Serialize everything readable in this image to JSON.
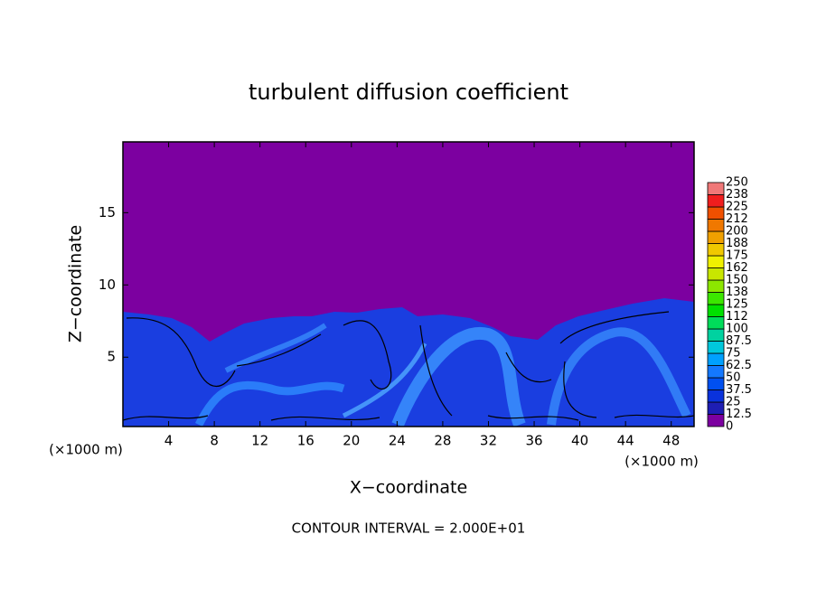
{
  "chart_data": {
    "type": "contour",
    "title": "turbulent diffusion coefficient",
    "x_label": "X−coordinate",
    "y_label": "Z−coordinate",
    "x_unit_label": "(×1000 m)",
    "y_unit_label": "(×1000 m)",
    "annotation": "CONTOUR INTERVAL = 2.000E+01",
    "xlim": [
      0,
      50
    ],
    "ylim": [
      0.2,
      19.9
    ],
    "xticks": [
      4,
      8,
      12,
      16,
      20,
      24,
      28,
      32,
      36,
      40,
      44,
      48
    ],
    "yticks": [
      5,
      10,
      15
    ],
    "background_color": "#7c00a0",
    "colorbar": {
      "levels": [
        0,
        12.5,
        25,
        37.5,
        50,
        62.5,
        75,
        87.5,
        100,
        112,
        125,
        138,
        150,
        162,
        175,
        188,
        200,
        212,
        225,
        238,
        250
      ],
      "colors": [
        "#7c00a0",
        "#1e1eb4",
        "#0a32dc",
        "#0050f0",
        "#1478ff",
        "#00a0ff",
        "#00c8dc",
        "#00d2a0",
        "#00dc5a",
        "#00e000",
        "#3ce600",
        "#8ce600",
        "#c8e600",
        "#f0f000",
        "#f0c800",
        "#f0a000",
        "#f07800",
        "#f05000",
        "#f01e1e",
        "#f07878"
      ]
    }
  }
}
